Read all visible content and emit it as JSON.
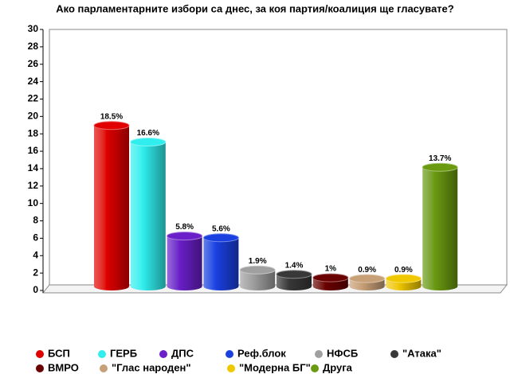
{
  "chart_data": {
    "type": "bar",
    "title": "Ако парламентарните избори са днес, за коя партия/коалиция ще гласувате?",
    "categories": [
      "БСП",
      "ГЕРБ",
      "ДПС",
      "Реф.блок",
      "НФСБ",
      "\"Атака\"",
      "ВМРО",
      "\"Глас народен\"",
      "\"Модерна БГ\"",
      "Друга"
    ],
    "values": [
      18.5,
      16.6,
      5.8,
      5.6,
      1.9,
      1.4,
      1,
      0.9,
      0.9,
      13.7
    ],
    "value_labels": [
      "18.5%",
      "16.6%",
      "5.8%",
      "5.6%",
      "1.9%",
      "1.4%",
      "1%",
      "0.9%",
      "0.9%",
      "13.7%"
    ],
    "colors": [
      "#e00000",
      "#30eeee",
      "#6a1fc8",
      "#1a40e0",
      "#a0a0a0",
      "#383838",
      "#6a0000",
      "#c8a078",
      "#f0c800",
      "#6a9a10"
    ],
    "ylim": [
      0,
      30
    ],
    "yticks": [
      0,
      2,
      4,
      6,
      8,
      10,
      12,
      14,
      16,
      18,
      20,
      22,
      24,
      26,
      28,
      30
    ],
    "grid": false
  }
}
